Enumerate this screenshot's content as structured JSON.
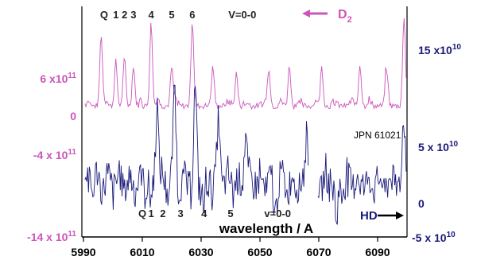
{
  "chart_data": {
    "type": "line",
    "xlabel": "wavelength / A",
    "x_ticks": [
      5990,
      6010,
      6030,
      6050,
      6070,
      6090
    ],
    "x_tick_labels": [
      "5990",
      "6010",
      "6030",
      "6050",
      "6070",
      "6090"
    ],
    "xlim": [
      5990,
      6100
    ],
    "grid": false,
    "colors": {
      "d2": "#cc55bb",
      "hd": "#1a1a7a",
      "axis": "#000000"
    },
    "left_axis": {
      "color": "#cc55bb",
      "ticks": [
        {
          "value": 600000000000.0,
          "label": "6 x10",
          "exp": "11"
        },
        {
          "value": 0,
          "label": "0",
          "exp": ""
        },
        {
          "value": -400000000000.0,
          "label": "-4 x 10",
          "exp": "11"
        },
        {
          "value": -1400000000000.0,
          "label": "-14 x 10",
          "exp": "11"
        }
      ]
    },
    "right_axis": {
      "color": "#1a1a7a",
      "ticks": [
        {
          "value": 150000000000.0,
          "label": "15 x10",
          "exp": "10"
        },
        {
          "value": 50000000000.0,
          "label": "5 x 10",
          "exp": "10"
        },
        {
          "value": 0,
          "label": "0",
          "exp": ""
        },
        {
          "value": -50000000000.0,
          "label": "-5 x 10",
          "exp": "10"
        }
      ]
    },
    "series": [
      {
        "name": "D",
        "name_sub": "2",
        "axis": "left",
        "color": "#cc55bb",
        "arrow": "left",
        "branch_labels": [
          {
            "text": "Q",
            "x": 5997
          },
          {
            "text": "1",
            "x": 6001
          },
          {
            "text": "2",
            "x": 6004
          },
          {
            "text": "3",
            "x": 6007
          },
          {
            "text": "4",
            "x": 6013
          },
          {
            "text": "5",
            "x": 6020
          },
          {
            "text": "6",
            "x": 6027
          },
          {
            "text": "V=0-0",
            "x": 6044
          }
        ],
        "peaks": [
          {
            "x": 5996,
            "v": 1200000000000.0
          },
          {
            "x": 6001,
            "v": 750000000000.0
          },
          {
            "x": 6004,
            "v": 700000000000.0
          },
          {
            "x": 6007,
            "v": 680000000000.0
          },
          {
            "x": 6013,
            "v": 1400000000000.0
          },
          {
            "x": 6020,
            "v": 650000000000.0
          },
          {
            "x": 6027,
            "v": 1350000000000.0
          },
          {
            "x": 6034,
            "v": 600000000000.0
          },
          {
            "x": 6042,
            "v": 550000000000.0
          },
          {
            "x": 6053,
            "v": 650000000000.0
          },
          {
            "x": 6060,
            "v": 680000000000.0
          },
          {
            "x": 6071,
            "v": 650000000000.0
          },
          {
            "x": 6084,
            "v": 700000000000.0
          },
          {
            "x": 6093,
            "v": 600000000000.0
          },
          {
            "x": 6099,
            "v": 1500000000000.0
          }
        ]
      },
      {
        "name": "HD",
        "axis": "right",
        "color": "#1a1a7a",
        "arrow": "right",
        "annotation": "JPN 61021",
        "branch_labels": [
          {
            "text": "Q",
            "x": 6010
          },
          {
            "text": "1",
            "x": 6013
          },
          {
            "text": "2",
            "x": 6017
          },
          {
            "text": "3",
            "x": 6023
          },
          {
            "text": "4",
            "x": 6031
          },
          {
            "text": "5",
            "x": 6040
          },
          {
            "text": "v=0-0",
            "x": 6056
          }
        ],
        "peaks": [
          {
            "x": 6015,
            "v": 75000000000.0
          },
          {
            "x": 6021,
            "v": 85000000000.0
          },
          {
            "x": 6028,
            "v": 80000000000.0
          },
          {
            "x": 6036,
            "v": 55000000000.0
          },
          {
            "x": 6045,
            "v": 50000000000.0
          },
          {
            "x": 6066,
            "v": 45000000000.0
          },
          {
            "x": 6099,
            "v": 55000000000.0
          }
        ],
        "dips": [
          {
            "x": 6013,
            "v": -20000000000.0
          },
          {
            "x": 6031,
            "v": -25000000000.0
          },
          {
            "x": 6055,
            "v": -30000000000.0
          },
          {
            "x": 6076,
            "v": -40000000000.0
          }
        ]
      }
    ]
  }
}
